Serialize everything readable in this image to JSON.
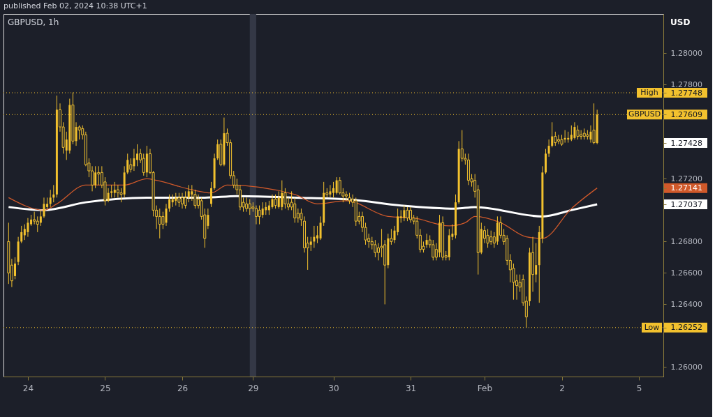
{
  "chart_data": {
    "type": "candlestick",
    "title": "GBPUSD, 1h",
    "ylabel": "USD",
    "annotations": [
      "published Feb 02, 2024 10:38 UTC+1"
    ],
    "categories": [
      null,
      null,
      null,
      null,
      null,
      null,
      "24",
      null,
      null,
      null,
      null,
      null,
      null,
      null,
      null,
      null,
      null,
      null,
      null,
      null,
      null,
      null,
      null,
      null,
      null,
      null,
      null,
      null,
      null,
      null,
      "25",
      null,
      null,
      null,
      null,
      null,
      null,
      null,
      null,
      null,
      null,
      null,
      null,
      null,
      null,
      null,
      null,
      null,
      null,
      null,
      null,
      null,
      null,
      null,
      "26",
      null,
      null,
      null,
      null,
      null,
      null,
      null,
      null,
      null,
      null,
      null,
      null,
      null,
      null,
      null,
      null,
      null,
      null,
      null,
      null,
      null,
      "29",
      null,
      null,
      null,
      null,
      null,
      null,
      null,
      null,
      null,
      null,
      null,
      null,
      null,
      null,
      null,
      null,
      null,
      null,
      null,
      null,
      null,
      null,
      null,
      null,
      "30",
      null,
      null,
      null,
      null,
      null,
      null,
      null,
      null,
      null,
      null,
      null,
      null,
      null,
      null,
      null,
      null,
      null,
      null,
      null,
      null,
      null,
      null,
      null,
      "31",
      null,
      null,
      null,
      null,
      null,
      null,
      null,
      null,
      null,
      null,
      null,
      null,
      null,
      null,
      null,
      null,
      null,
      null,
      null,
      null,
      null,
      null,
      "Feb",
      null,
      null,
      null,
      null,
      null,
      null,
      null,
      null,
      null,
      null,
      null,
      null,
      null,
      null,
      null,
      null,
      null,
      null,
      null,
      null,
      null,
      null,
      null,
      "2",
      null,
      null,
      null,
      null,
      null,
      null,
      null,
      null,
      null,
      null,
      null,
      null,
      null,
      null,
      null,
      null,
      null,
      null,
      null,
      null,
      null,
      null,
      null,
      "5",
      null,
      null,
      null,
      null,
      null,
      null
    ],
    "ylim": [
      1.2594,
      1.2825
    ],
    "yticks": [
      {
        "value": 1.26,
        "label": "1.26000"
      },
      {
        "value": 1.26252,
        "label": "1.26252"
      },
      {
        "value": 1.264,
        "label": "1.26400"
      },
      {
        "value": 1.266,
        "label": "1.26600"
      },
      {
        "value": 1.268,
        "label": "1.26800"
      },
      {
        "value": 1.27037,
        "label": "1.27037"
      },
      {
        "value": 1.27141,
        "label": "1.27141"
      },
      {
        "value": 1.272,
        "label": "1.27200"
      },
      {
        "value": 1.27428,
        "label": "1.27428"
      },
      {
        "value": 1.27609,
        "label": "1.27609"
      },
      {
        "value": 1.27748,
        "label": "1.27748"
      },
      {
        "value": 1.278,
        "label": "1.27800"
      },
      {
        "value": 1.28,
        "label": "1.28000"
      }
    ],
    "bands": [
      {
        "axis": "x",
        "from": "29",
        "to": "29",
        "color": "#343846"
      }
    ],
    "ref_lines": [
      {
        "axis": "y",
        "value": 1.27748,
        "label": "High",
        "color": "#f2c12e",
        "line_style": "dotted"
      },
      {
        "axis": "y",
        "value": 1.27609,
        "label": "GBPUSD",
        "color": "#f2c12e",
        "line_style": "dotted"
      },
      {
        "axis": "y",
        "value": 1.26252,
        "label": "Low",
        "color": "#f2c12e",
        "line_style": "dotted"
      }
    ],
    "series": [
      {
        "color": "#f2c12e",
        "ohlc": [
          [
            1.268,
            1.2692,
            1.2653,
            1.266
          ],
          [
            1.2665,
            1.2669,
            1.2651,
            1.2655
          ],
          [
            1.2658,
            1.267,
            1.2656,
            1.2666
          ],
          [
            1.2667,
            1.2683,
            1.2665,
            1.268
          ],
          [
            1.268,
            1.269,
            1.2679,
            1.2686
          ],
          [
            1.2684,
            1.2691,
            1.2681,
            1.2688
          ],
          [
            1.2686,
            1.2695,
            1.2683,
            1.2692
          ],
          [
            1.2691,
            1.2697,
            1.269,
            1.2694
          ],
          [
            1.2694,
            1.2699,
            1.2691,
            1.2693
          ],
          [
            1.2693,
            1.2696,
            1.2686,
            1.2691
          ],
          [
            1.2692,
            1.27,
            1.269,
            1.2696
          ],
          [
            1.2696,
            1.2708,
            1.2695,
            1.2704
          ],
          [
            1.2702,
            1.2708,
            1.2701,
            1.2704
          ],
          [
            1.2704,
            1.2713,
            1.2702,
            1.2708
          ],
          [
            1.2708,
            1.2716,
            1.2705,
            1.271
          ],
          [
            1.271,
            1.2773,
            1.2708,
            1.2764
          ],
          [
            1.2764,
            1.2768,
            1.275,
            1.2753
          ],
          [
            1.2753,
            1.2756,
            1.2736,
            1.274
          ],
          [
            1.2738,
            1.275,
            1.2732,
            1.2745
          ],
          [
            1.2738,
            1.2771,
            1.2736,
            1.2767
          ],
          [
            1.2767,
            1.2775,
            1.2742,
            1.2744
          ],
          [
            1.2744,
            1.2756,
            1.2741,
            1.2753
          ],
          [
            1.2753,
            1.2754,
            1.2745,
            1.2751
          ],
          [
            1.2752,
            1.2754,
            1.2745,
            1.2748
          ],
          [
            1.2748,
            1.275,
            1.2728,
            1.2729
          ],
          [
            1.273,
            1.2733,
            1.2721,
            1.2725
          ],
          [
            1.2725,
            1.2728,
            1.2712,
            1.2716
          ],
          [
            1.2716,
            1.2728,
            1.2714,
            1.2724
          ],
          [
            1.2724,
            1.2728,
            1.2716,
            1.2723
          ],
          [
            1.2724,
            1.2728,
            1.2714,
            1.2716
          ],
          [
            1.2718,
            1.2721,
            1.2703,
            1.2706
          ],
          [
            1.2706,
            1.2714,
            1.2705,
            1.2711
          ],
          [
            1.2711,
            1.2716,
            1.2708,
            1.2712
          ],
          [
            1.2711,
            1.2718,
            1.2708,
            1.2713
          ],
          [
            1.2713,
            1.2716,
            1.2708,
            1.2711
          ],
          [
            1.2711,
            1.2714,
            1.2705,
            1.271
          ],
          [
            1.271,
            1.2728,
            1.2708,
            1.2724
          ],
          [
            1.2724,
            1.2736,
            1.2723,
            1.2732
          ],
          [
            1.2729,
            1.2733,
            1.2724,
            1.2726
          ],
          [
            1.2728,
            1.2739,
            1.2725,
            1.2733
          ],
          [
            1.2732,
            1.2742,
            1.2728,
            1.2736
          ],
          [
            1.2736,
            1.2739,
            1.273,
            1.2732
          ],
          [
            1.2733,
            1.2736,
            1.2722,
            1.2724
          ],
          [
            1.2724,
            1.2741,
            1.2721,
            1.2736
          ],
          [
            1.2736,
            1.2739,
            1.2723,
            1.2724
          ],
          [
            1.2724,
            1.2725,
            1.2696,
            1.27
          ],
          [
            1.27,
            1.2703,
            1.2688,
            1.2696
          ],
          [
            1.2696,
            1.2701,
            1.2682,
            1.2691
          ],
          [
            1.2696,
            1.2699,
            1.2688,
            1.2691
          ],
          [
            1.2692,
            1.2704,
            1.269,
            1.2701
          ],
          [
            1.2701,
            1.271,
            1.2699,
            1.2707
          ],
          [
            1.2705,
            1.271,
            1.2702,
            1.2707
          ],
          [
            1.2706,
            1.2711,
            1.2703,
            1.2708
          ],
          [
            1.2708,
            1.2711,
            1.2702,
            1.2705
          ],
          [
            1.2708,
            1.2711,
            1.2701,
            1.2704
          ],
          [
            1.2708,
            1.2712,
            1.2701,
            1.2703
          ],
          [
            1.2708,
            1.2716,
            1.2705,
            1.2712
          ],
          [
            1.271,
            1.2716,
            1.2706,
            1.2712
          ],
          [
            1.271,
            1.2713,
            1.2701,
            1.2703
          ],
          [
            1.2707,
            1.271,
            1.2701,
            1.2703
          ],
          [
            1.2706,
            1.2708,
            1.2694,
            1.2696
          ],
          [
            1.2697,
            1.2701,
            1.2676,
            1.2682
          ],
          [
            1.269,
            1.2701,
            1.2688,
            1.2697
          ],
          [
            1.2704,
            1.2718,
            1.2702,
            1.2714
          ],
          [
            1.2714,
            1.2736,
            1.2713,
            1.2733
          ],
          [
            1.2733,
            1.2745,
            1.2732,
            1.2742
          ],
          [
            1.2742,
            1.2745,
            1.2728,
            1.2729
          ],
          [
            1.2729,
            1.2759,
            1.2728,
            1.2749
          ],
          [
            1.2749,
            1.2752,
            1.2741,
            1.2743
          ],
          [
            1.2743,
            1.2745,
            1.272,
            1.2722
          ],
          [
            1.2722,
            1.2725,
            1.2714,
            1.2716
          ],
          [
            1.2716,
            1.272,
            1.271,
            1.2713
          ],
          [
            1.2713,
            1.2716,
            1.27,
            1.2702
          ],
          [
            1.2705,
            1.2708,
            1.2699,
            1.2702
          ],
          [
            1.2704,
            1.2708,
            1.2699,
            1.2701
          ],
          [
            1.2704,
            1.2707,
            1.2697,
            1.2701
          ],
          [
            1.2702,
            1.2705,
            1.2699,
            1.2701
          ],
          [
            1.2701,
            1.2703,
            1.2691,
            1.2696
          ],
          [
            1.27,
            1.2703,
            1.2691,
            1.2696
          ],
          [
            1.2697,
            1.2705,
            1.2695,
            1.2701
          ],
          [
            1.27,
            1.2705,
            1.2697,
            1.2702
          ],
          [
            1.27,
            1.2706,
            1.2697,
            1.2703
          ],
          [
            1.2702,
            1.271,
            1.2701,
            1.2707
          ],
          [
            1.2707,
            1.271,
            1.2701,
            1.2703
          ],
          [
            1.2702,
            1.2712,
            1.2701,
            1.2708
          ],
          [
            1.2702,
            1.2719,
            1.27,
            1.2711
          ],
          [
            1.2711,
            1.2714,
            1.2701,
            1.2704
          ],
          [
            1.2704,
            1.2708,
            1.27,
            1.2702
          ],
          [
            1.2705,
            1.2712,
            1.27,
            1.2702
          ],
          [
            1.2704,
            1.2708,
            1.2692,
            1.2695
          ],
          [
            1.2698,
            1.2701,
            1.2692,
            1.2695
          ],
          [
            1.2698,
            1.2701,
            1.269,
            1.2694
          ],
          [
            1.2693,
            1.2696,
            1.2673,
            1.2676
          ],
          [
            1.2679,
            1.2683,
            1.2662,
            1.2676
          ],
          [
            1.2678,
            1.2683,
            1.2674,
            1.268
          ],
          [
            1.268,
            1.269,
            1.2676,
            1.2683
          ],
          [
            1.2682,
            1.269,
            1.2679,
            1.2684
          ],
          [
            1.2682,
            1.2696,
            1.2681,
            1.2692
          ],
          [
            1.2692,
            1.2718,
            1.269,
            1.2711
          ],
          [
            1.2711,
            1.2714,
            1.2708,
            1.271
          ],
          [
            1.271,
            1.2716,
            1.2708,
            1.2712
          ],
          [
            1.2711,
            1.2718,
            1.2708,
            1.2714
          ],
          [
            1.2711,
            1.2721,
            1.271,
            1.2719
          ],
          [
            1.2719,
            1.2721,
            1.271,
            1.2711
          ],
          [
            1.2711,
            1.2714,
            1.2705,
            1.2709
          ],
          [
            1.271,
            1.2712,
            1.2706,
            1.2709
          ],
          [
            1.2708,
            1.2711,
            1.2704,
            1.2706
          ],
          [
            1.2707,
            1.271,
            1.2702,
            1.2705
          ],
          [
            1.2706,
            1.2708,
            1.269,
            1.2693
          ],
          [
            1.2696,
            1.2699,
            1.2691,
            1.2693
          ],
          [
            1.2696,
            1.2699,
            1.2686,
            1.2689
          ],
          [
            1.2689,
            1.2692,
            1.2678,
            1.2681
          ],
          [
            1.2682,
            1.2685,
            1.2676,
            1.268
          ],
          [
            1.268,
            1.2683,
            1.2675,
            1.2678
          ],
          [
            1.2678,
            1.2681,
            1.267,
            1.2673
          ],
          [
            1.2676,
            1.2679,
            1.2668,
            1.2673
          ],
          [
            1.2677,
            1.2688,
            1.267,
            1.2676
          ],
          [
            1.2678,
            1.2681,
            1.264,
            1.2665
          ],
          [
            1.2665,
            1.2685,
            1.2663,
            1.2682
          ],
          [
            1.2682,
            1.2688,
            1.2678,
            1.268
          ],
          [
            1.2681,
            1.269,
            1.2679,
            1.2687
          ],
          [
            1.2686,
            1.2701,
            1.2684,
            1.2696
          ],
          [
            1.2695,
            1.27,
            1.2692,
            1.2696
          ],
          [
            1.2695,
            1.2703,
            1.2693,
            1.27
          ],
          [
            1.27,
            1.2702,
            1.2693,
            1.2695
          ],
          [
            1.27,
            1.2702,
            1.2692,
            1.2694
          ],
          [
            1.2695,
            1.2697,
            1.2691,
            1.2693
          ],
          [
            1.2693,
            1.2696,
            1.2682,
            1.2684
          ],
          [
            1.2684,
            1.2688,
            1.2673,
            1.2675
          ],
          [
            1.2677,
            1.268,
            1.2673,
            1.2675
          ],
          [
            1.2678,
            1.2685,
            1.2676,
            1.2681
          ],
          [
            1.2681,
            1.2684,
            1.2676,
            1.2678
          ],
          [
            1.2678,
            1.2681,
            1.2668,
            1.267
          ],
          [
            1.2675,
            1.2679,
            1.2668,
            1.267
          ],
          [
            1.2673,
            1.2697,
            1.267,
            1.2692
          ],
          [
            1.2692,
            1.2696,
            1.2668,
            1.267
          ],
          [
            1.2671,
            1.2674,
            1.2668,
            1.267
          ],
          [
            1.267,
            1.2688,
            1.2668,
            1.2684
          ],
          [
            1.2683,
            1.2691,
            1.2681,
            1.2685
          ],
          [
            1.2684,
            1.271,
            1.2682,
            1.2705
          ],
          [
            1.2705,
            1.2744,
            1.2704,
            1.2739
          ],
          [
            1.2739,
            1.2751,
            1.2731,
            1.2733
          ],
          [
            1.2733,
            1.2736,
            1.2729,
            1.2732
          ],
          [
            1.2732,
            1.2736,
            1.2716,
            1.2719
          ],
          [
            1.272,
            1.2723,
            1.2715,
            1.2718
          ],
          [
            1.2719,
            1.2723,
            1.2708,
            1.2712
          ],
          [
            1.2713,
            1.2716,
            1.2659,
            1.2673
          ],
          [
            1.2673,
            1.2692,
            1.2672,
            1.2688
          ],
          [
            1.2687,
            1.269,
            1.2679,
            1.2682
          ],
          [
            1.2684,
            1.2688,
            1.2676,
            1.2679
          ],
          [
            1.2683,
            1.2687,
            1.2678,
            1.268
          ],
          [
            1.2683,
            1.2686,
            1.2676,
            1.2679
          ],
          [
            1.268,
            1.2696,
            1.2678,
            1.2692
          ],
          [
            1.2692,
            1.2696,
            1.2682,
            1.2684
          ],
          [
            1.2684,
            1.2688,
            1.2678,
            1.268
          ],
          [
            1.2682,
            1.2684,
            1.2665,
            1.2668
          ],
          [
            1.2668,
            1.2672,
            1.2654,
            1.2662
          ],
          [
            1.2663,
            1.2666,
            1.2643,
            1.2654
          ],
          [
            1.2655,
            1.2659,
            1.2643,
            1.2652
          ],
          [
            1.2654,
            1.2659,
            1.2648,
            1.2651
          ],
          [
            1.2656,
            1.2659,
            1.2639,
            1.2641
          ],
          [
            1.2642,
            1.2645,
            1.26252,
            1.2632
          ],
          [
            1.2642,
            1.2676,
            1.2639,
            1.2673
          ],
          [
            1.2673,
            1.2683,
            1.2648,
            1.2659
          ],
          [
            1.2659,
            1.2679,
            1.2654,
            1.2665
          ],
          [
            1.2665,
            1.269,
            1.2641,
            1.2686
          ],
          [
            1.2682,
            1.2728,
            1.2679,
            1.2724
          ],
          [
            1.2724,
            1.2739,
            1.2723,
            1.2736
          ],
          [
            1.2736,
            1.2745,
            1.2734,
            1.2741
          ],
          [
            1.2741,
            1.2756,
            1.274,
            1.2747
          ],
          [
            1.2747,
            1.275,
            1.2741,
            1.2743
          ],
          [
            1.2745,
            1.2748,
            1.2742,
            1.2744
          ],
          [
            1.2745,
            1.2748,
            1.2741,
            1.2742
          ],
          [
            1.2745,
            1.2751,
            1.2743,
            1.2746
          ],
          [
            1.2745,
            1.275,
            1.2743,
            1.2746
          ],
          [
            1.2745,
            1.2754,
            1.2744,
            1.2748
          ],
          [
            1.2746,
            1.2756,
            1.2745,
            1.2753
          ],
          [
            1.2751,
            1.2754,
            1.2745,
            1.2747
          ],
          [
            1.2748,
            1.2751,
            1.2745,
            1.2747
          ],
          [
            1.2749,
            1.2752,
            1.2745,
            1.2747
          ],
          [
            1.2748,
            1.2751,
            1.2745,
            1.2747
          ],
          [
            1.2745,
            1.2754,
            1.2743,
            1.275
          ],
          [
            1.2751,
            1.2768,
            1.2742,
            1.2743
          ],
          [
            1.27428,
            1.2764,
            1.2742,
            1.27609
          ],
          null,
          null,
          null,
          null,
          null,
          null,
          null,
          null,
          null,
          null,
          null,
          null,
          null,
          null,
          null,
          null,
          null,
          null,
          null
        ]
      },
      {
        "type": "line",
        "color": "#ffffff",
        "values": [
          1.2702,
          null,
          null,
          null,
          null,
          null,
          null,
          null,
          null,
          null,
          null,
          1.27,
          null,
          null,
          null,
          null,
          null,
          null,
          null,
          null,
          null,
          null,
          null,
          null,
          1.2705,
          null,
          null,
          null,
          null,
          null,
          null,
          null,
          null,
          null,
          null,
          null,
          null,
          null,
          null,
          null,
          null,
          null,
          null,
          1.2708,
          null,
          null,
          null,
          null,
          null,
          null,
          null,
          null,
          null,
          null,
          null,
          null,
          null,
          null,
          null,
          null,
          null,
          1.2708,
          null,
          null,
          null,
          null,
          null,
          null,
          null,
          null,
          null,
          1.2709,
          null,
          null,
          null,
          null,
          null,
          null,
          null,
          null,
          null,
          null,
          null,
          null,
          null,
          null,
          null,
          null,
          null,
          1.2708,
          null,
          null,
          null,
          null,
          null,
          null,
          null,
          null,
          null,
          null,
          null,
          null,
          null,
          null,
          null,
          1.2707,
          null,
          null,
          null,
          null,
          null,
          null,
          null,
          null,
          null,
          null,
          null,
          null,
          null,
          null,
          null,
          null,
          1.2703,
          null,
          null,
          null,
          null,
          null,
          null,
          null,
          null,
          null,
          null,
          null,
          null,
          null,
          null,
          null,
          null,
          1.2701,
          null,
          null,
          null,
          null,
          null,
          1.2702,
          null,
          null,
          null,
          null,
          null,
          null,
          null,
          null,
          null,
          null,
          null,
          null,
          null,
          null,
          null,
          null,
          null,
          null,
          null,
          null,
          1.2696,
          null,
          null,
          null,
          null,
          null,
          null,
          null,
          null,
          1.27,
          null,
          null,
          null,
          null,
          null,
          null,
          null,
          1.27037,
          null,
          null,
          null,
          null,
          null,
          null,
          null,
          null,
          null,
          null,
          null,
          null,
          null,
          null,
          null,
          null,
          null,
          null,
          null
        ]
      },
      {
        "type": "line",
        "color": "#d0592a",
        "values": [
          1.2708,
          null,
          null,
          null,
          null,
          null,
          null,
          null,
          null,
          null,
          null,
          1.27,
          null,
          null,
          null,
          1.2704,
          null,
          null,
          null,
          null,
          null,
          null,
          null,
          null,
          1.2716,
          null,
          null,
          null,
          null,
          null,
          1.2716,
          null,
          null,
          null,
          null,
          null,
          1.2716,
          null,
          null,
          null,
          null,
          null,
          null,
          1.272,
          null,
          null,
          1.2719,
          null,
          null,
          null,
          null,
          null,
          null,
          null,
          null,
          null,
          null,
          1.2713,
          null,
          null,
          null,
          null,
          null,
          1.2711,
          null,
          null,
          null,
          null,
          1.2716,
          null,
          null,
          null,
          null,
          null,
          null,
          null,
          null,
          null,
          null,
          null,
          null,
          null,
          null,
          null,
          null,
          null,
          null,
          null,
          null,
          1.271,
          null,
          null,
          null,
          null,
          null,
          null,
          1.2704,
          null,
          null,
          null,
          null,
          null,
          null,
          null,
          null,
          1.2706,
          null,
          null,
          null,
          null,
          null,
          null,
          null,
          null,
          null,
          null,
          null,
          null,
          1.2696,
          null,
          null,
          null,
          null,
          null,
          null,
          null,
          1.2695,
          null,
          null,
          null,
          null,
          null,
          null,
          null,
          null,
          null,
          null,
          1.269,
          null,
          null,
          null,
          null,
          1.2692,
          null,
          null,
          1.2696,
          null,
          null,
          null,
          null,
          null,
          null,
          null,
          1.2692,
          null,
          null,
          null,
          null,
          null,
          null,
          null,
          1.2683,
          null,
          null,
          null,
          null,
          1.2682,
          null,
          null,
          null,
          null,
          null,
          null,
          null,
          null,
          1.2701,
          null,
          null,
          null,
          null,
          null,
          null,
          null,
          1.27141,
          null,
          null,
          null,
          null,
          null,
          null,
          null,
          null,
          null,
          null,
          null,
          null,
          null,
          null,
          null,
          null,
          null,
          null,
          null
        ]
      }
    ]
  }
}
